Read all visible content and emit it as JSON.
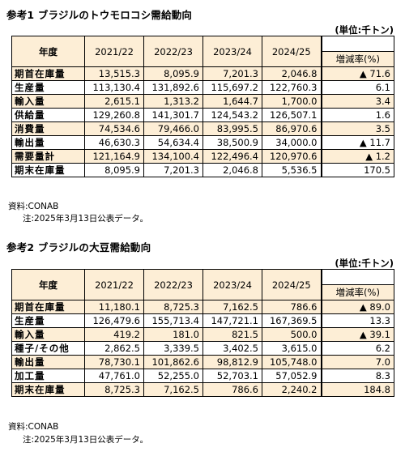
{
  "sec1": {
    "title": "参考1 ブラジルのトウモロコシ需給動向",
    "unit": "(単位:千トン)",
    "header": {
      "item": "年度",
      "years": [
        "2021/22",
        "2022/23",
        "2023/24",
        "2024/25"
      ],
      "change": "増減率(%)"
    },
    "rows": [
      {
        "label": "期首在庫量",
        "values": [
          "13,515.3",
          "8,095.9",
          "7,201.3",
          "2,046.8"
        ],
        "change": "▲ 71.6"
      },
      {
        "label": "生産量",
        "values": [
          "113,130.4",
          "131,892.6",
          "115,697.2",
          "122,760.3"
        ],
        "change": "6.1"
      },
      {
        "label": "輸入量",
        "values": [
          "2,615.1",
          "1,313.2",
          "1,644.7",
          "1,700.0"
        ],
        "change": "3.4"
      },
      {
        "label": "供給量",
        "values": [
          "129,260.8",
          "141,301.7",
          "124,543.2",
          "126,507.1"
        ],
        "change": "1.6"
      },
      {
        "label": "消費量",
        "values": [
          "74,534.6",
          "79,466.0",
          "83,995.5",
          "86,970.6"
        ],
        "change": "3.5"
      },
      {
        "label": "輸出量",
        "values": [
          "46,630.3",
          "54,634.4",
          "38,500.9",
          "34,000.0"
        ],
        "change": "▲ 11.7"
      },
      {
        "label": "需要量計",
        "values": [
          "121,164.9",
          "134,100.4",
          "122,496.4",
          "120,970.6"
        ],
        "change": "▲ 1.2"
      },
      {
        "label": "期末在庫量",
        "values": [
          "8,095.9",
          "7,201.3",
          "2,046.8",
          "5,536.5"
        ],
        "change": "170.5"
      }
    ],
    "source": "資料:CONAB",
    "note": "注:2025年3月13日公表データ。"
  },
  "sec2": {
    "title": "参考2 ブラジルの大豆需給動向",
    "unit": "(単位:千トン)",
    "header": {
      "item": "年度",
      "years": [
        "2021/22",
        "2022/23",
        "2023/24",
        "2024/25"
      ],
      "change": "増減率(%)"
    },
    "rows": [
      {
        "label": "期首在庫量",
        "values": [
          "11,180.1",
          "8,725.3",
          "7,162.5",
          "786.6"
        ],
        "change": "▲ 89.0"
      },
      {
        "label": "生産量",
        "values": [
          "126,479.6",
          "155,713.4",
          "147,721.1",
          "167,369.5"
        ],
        "change": "13.3"
      },
      {
        "label": "輸入量",
        "values": [
          "419.2",
          "181.0",
          "821.5",
          "500.0"
        ],
        "change": "▲ 39.1"
      },
      {
        "label": "種子/その他",
        "values": [
          "2,862.5",
          "3,339.5",
          "3,402.5",
          "3,615.0"
        ],
        "change": "6.2"
      },
      {
        "label": "輸出量",
        "values": [
          "78,730.1",
          "101,862.6",
          "98,812.9",
          "105,748.0"
        ],
        "change": "7.0"
      },
      {
        "label": "加工量",
        "values": [
          "47,761.0",
          "52,255.0",
          "52,703.1",
          "57,052.9"
        ],
        "change": "8.3"
      },
      {
        "label": "期末在庫量",
        "values": [
          "8,725.3",
          "7,162.5",
          "786.6",
          "2,240.2"
        ],
        "change": "184.8"
      }
    ],
    "source": "資料:CONAB",
    "note": "注:2025年3月13日公表データ。"
  }
}
